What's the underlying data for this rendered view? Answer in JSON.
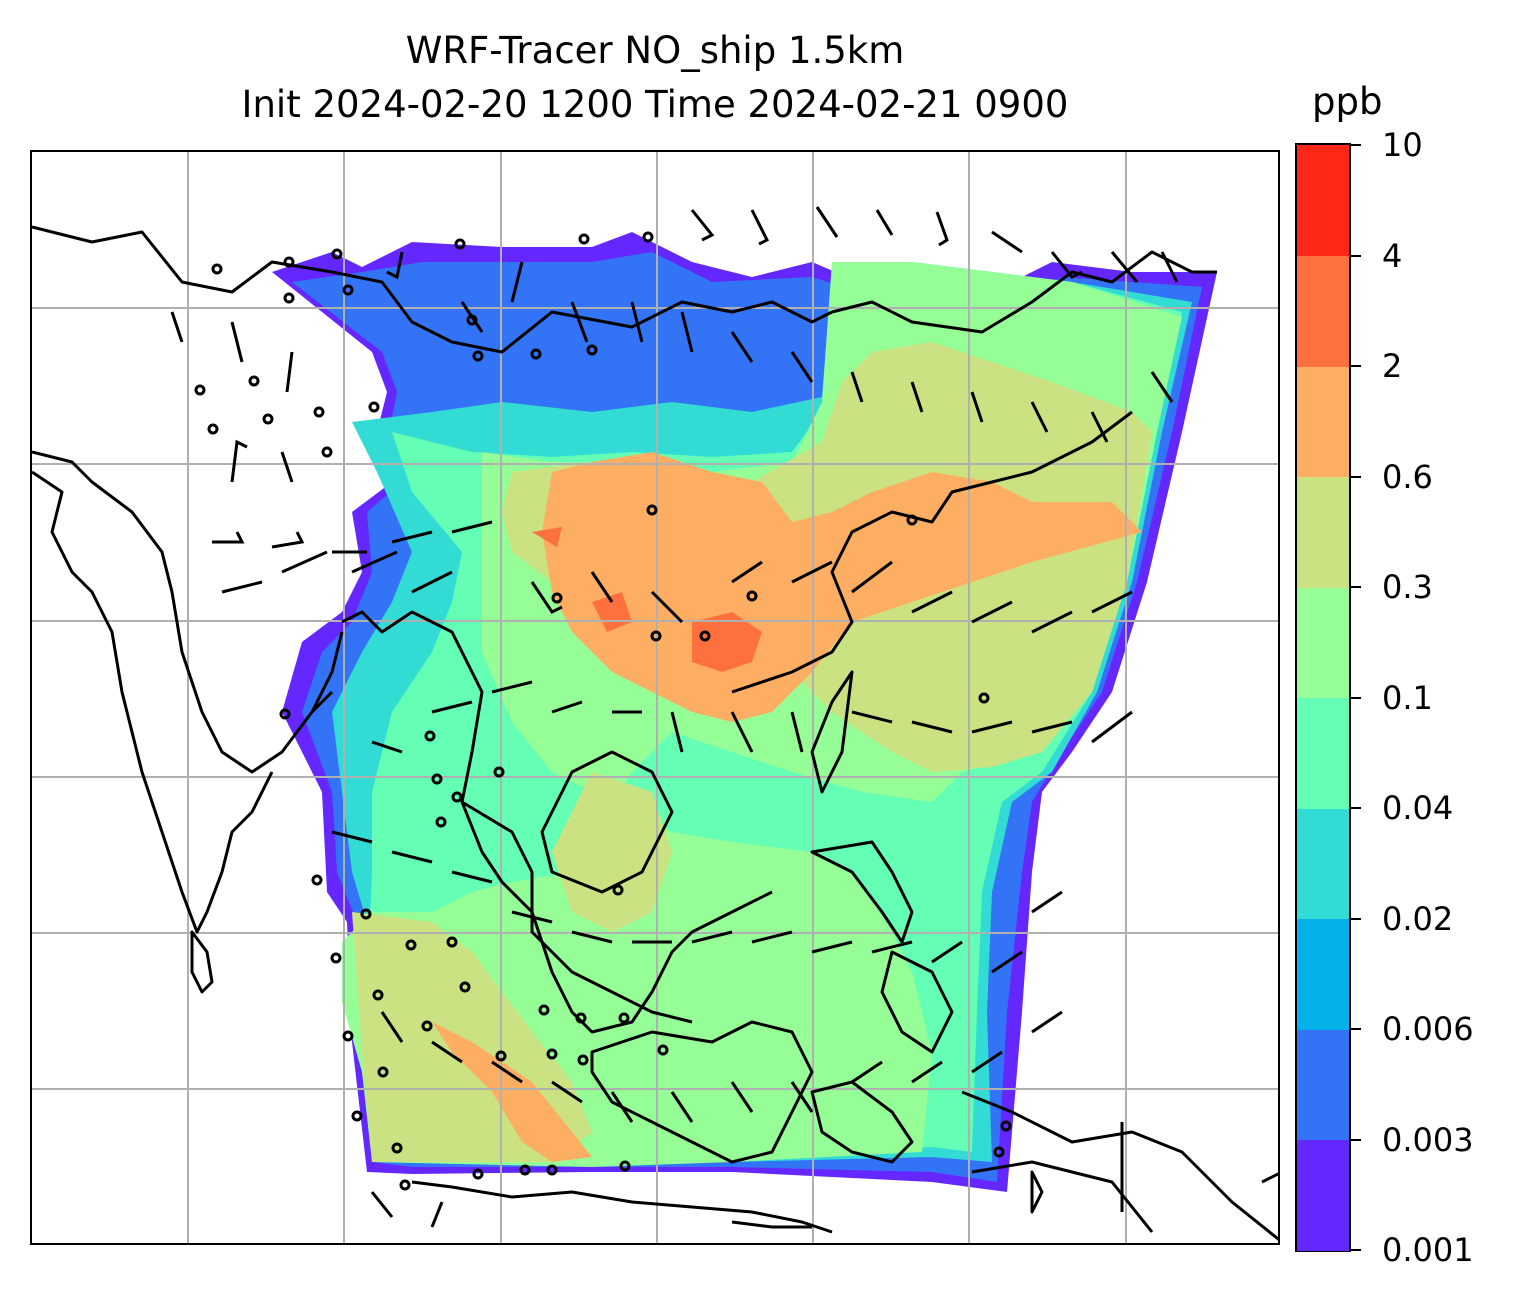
{
  "title": {
    "line1": "WRF-Tracer NO_ship 1.5km",
    "line2": "Init 2024-02-20 1200 Time 2024-02-21 0900"
  },
  "colorbar": {
    "unit": "ppb",
    "levels": [
      "0.001",
      "0.003",
      "0.006",
      "0.02",
      "0.04",
      "0.1",
      "0.3",
      "0.6",
      "2",
      "4",
      "10"
    ],
    "colors": [
      "#6428ff",
      "#3274f5",
      "#04b2e9",
      "#32dcd4",
      "#64feb4",
      "#96fe96",
      "#cbe282",
      "#feae62",
      "#fe703d",
      "#ff2818"
    ]
  },
  "map": {
    "layers": [
      "coastlines",
      "gridlines",
      "tracer-concentration-field",
      "wind-barbs"
    ],
    "gridline_color": "#b0b0b0"
  }
}
